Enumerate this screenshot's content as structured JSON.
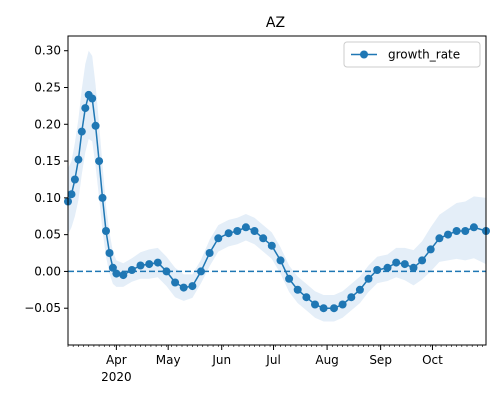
{
  "chart_data": {
    "type": "line",
    "title": "AZ",
    "xlabel": "",
    "ylabel": "",
    "x_range": [
      "2020-03-04",
      "2020-11-01"
    ],
    "ylim": [
      -0.1,
      0.32
    ],
    "y_ticks": [
      -0.05,
      0.0,
      0.05,
      0.1,
      0.15,
      0.2,
      0.25,
      0.3
    ],
    "y_tick_labels": [
      "−0.05",
      "0.00",
      "0.05",
      "0.10",
      "0.15",
      "0.20",
      "0.25",
      "0.30"
    ],
    "x_major_ticks": [
      {
        "date": "2020-04-01",
        "label": "Apr"
      },
      {
        "date": "2020-05-01",
        "label": "May"
      },
      {
        "date": "2020-06-01",
        "label": "Jun"
      },
      {
        "date": "2020-07-01",
        "label": "Jul"
      },
      {
        "date": "2020-08-01",
        "label": "Aug"
      },
      {
        "date": "2020-09-01",
        "label": "Sep"
      },
      {
        "date": "2020-10-01",
        "label": "Oct"
      }
    ],
    "x_year_label": "2020",
    "reference_line": {
      "y": 0.0,
      "style": "dashed",
      "color": "#1f77b4"
    },
    "legend": {
      "position": "top-right",
      "entries": [
        "growth_rate"
      ]
    },
    "grid": false,
    "series": [
      {
        "name": "growth_rate",
        "color": "#1f77b4",
        "band_color": "#dbe8f5",
        "marker": "circle",
        "points": [
          [
            "2020-03-04",
            0.095
          ],
          [
            "2020-03-06",
            0.105
          ],
          [
            "2020-03-08",
            0.125
          ],
          [
            "2020-03-10",
            0.152
          ],
          [
            "2020-03-12",
            0.19
          ],
          [
            "2020-03-14",
            0.222
          ],
          [
            "2020-03-16",
            0.24
          ],
          [
            "2020-03-18",
            0.235
          ],
          [
            "2020-03-20",
            0.198
          ],
          [
            "2020-03-22",
            0.15
          ],
          [
            "2020-03-24",
            0.1
          ],
          [
            "2020-03-26",
            0.055
          ],
          [
            "2020-03-28",
            0.025
          ],
          [
            "2020-03-30",
            0.005
          ],
          [
            "2020-04-01",
            -0.003
          ],
          [
            "2020-04-05",
            -0.005
          ],
          [
            "2020-04-10",
            0.002
          ],
          [
            "2020-04-15",
            0.008
          ],
          [
            "2020-04-20",
            0.01
          ],
          [
            "2020-04-25",
            0.012
          ],
          [
            "2020-04-30",
            0.0
          ],
          [
            "2020-05-05",
            -0.015
          ],
          [
            "2020-05-10",
            -0.022
          ],
          [
            "2020-05-15",
            -0.02
          ],
          [
            "2020-05-20",
            0.0
          ],
          [
            "2020-05-25",
            0.025
          ],
          [
            "2020-05-30",
            0.045
          ],
          [
            "2020-06-05",
            0.052
          ],
          [
            "2020-06-10",
            0.055
          ],
          [
            "2020-06-15",
            0.06
          ],
          [
            "2020-06-20",
            0.055
          ],
          [
            "2020-06-25",
            0.045
          ],
          [
            "2020-06-30",
            0.035
          ],
          [
            "2020-07-05",
            0.015
          ],
          [
            "2020-07-10",
            -0.01
          ],
          [
            "2020-07-15",
            -0.025
          ],
          [
            "2020-07-20",
            -0.035
          ],
          [
            "2020-07-25",
            -0.045
          ],
          [
            "2020-07-30",
            -0.05
          ],
          [
            "2020-08-05",
            -0.05
          ],
          [
            "2020-08-10",
            -0.045
          ],
          [
            "2020-08-15",
            -0.035
          ],
          [
            "2020-08-20",
            -0.025
          ],
          [
            "2020-08-25",
            -0.01
          ],
          [
            "2020-08-30",
            0.002
          ],
          [
            "2020-09-05",
            0.005
          ],
          [
            "2020-09-10",
            0.012
          ],
          [
            "2020-09-15",
            0.01
          ],
          [
            "2020-09-20",
            0.005
          ],
          [
            "2020-09-25",
            0.015
          ],
          [
            "2020-09-30",
            0.03
          ],
          [
            "2020-10-05",
            0.045
          ],
          [
            "2020-10-10",
            0.05
          ],
          [
            "2020-10-15",
            0.055
          ],
          [
            "2020-10-20",
            0.055
          ],
          [
            "2020-10-25",
            0.06
          ],
          [
            "2020-11-01",
            0.055
          ]
        ],
        "band_halfwidth": [
          0.045,
          0.045,
          0.05,
          0.055,
          0.058,
          0.06,
          0.06,
          0.058,
          0.055,
          0.05,
          0.045,
          0.035,
          0.028,
          0.022,
          0.018,
          0.016,
          0.016,
          0.018,
          0.02,
          0.02,
          0.02,
          0.02,
          0.018,
          0.016,
          0.016,
          0.018,
          0.018,
          0.018,
          0.018,
          0.018,
          0.018,
          0.018,
          0.018,
          0.018,
          0.018,
          0.018,
          0.018,
          0.018,
          0.018,
          0.018,
          0.018,
          0.018,
          0.018,
          0.018,
          0.018,
          0.018,
          0.02,
          0.022,
          0.024,
          0.026,
          0.03,
          0.032,
          0.035,
          0.038,
          0.04,
          0.042,
          0.045
        ]
      }
    ]
  }
}
